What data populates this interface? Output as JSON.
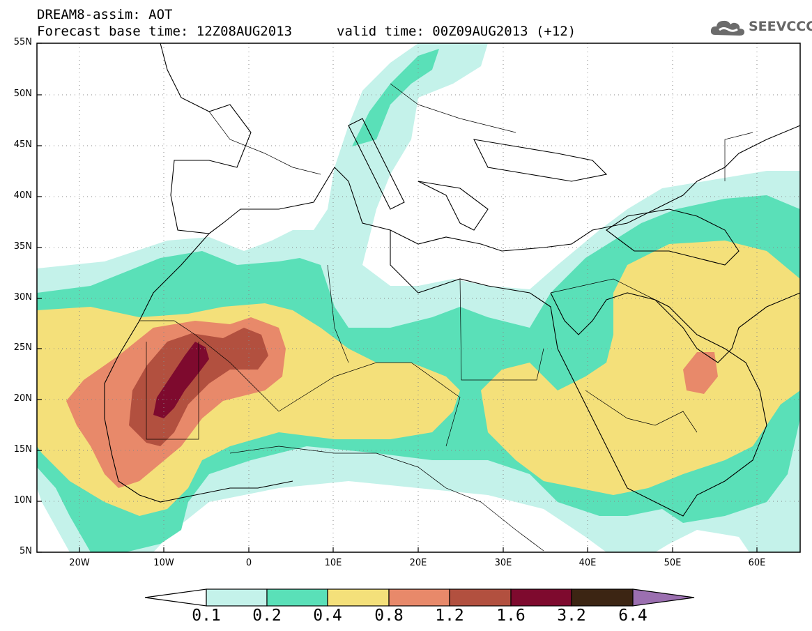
{
  "header": {
    "title": "DREAM8-assim: AOT",
    "base_time": "Forecast base time: 12Z08AUG2013",
    "valid_time": "valid time: 00Z09AUG2013 (+12)"
  },
  "logo": {
    "text": "SEEVCCC",
    "icon": "cloud-icon"
  },
  "map": {
    "lat_labels": [
      "55N",
      "50N",
      "45N",
      "40N",
      "35N",
      "30N",
      "25N",
      "20N",
      "15N",
      "10N",
      "5N"
    ],
    "lon_labels": [
      "20W",
      "10W",
      "0",
      "10E",
      "20E",
      "30E",
      "40E",
      "50E",
      "60E"
    ],
    "lon_range": [
      -25,
      65
    ],
    "lat_range": [
      5,
      55
    ],
    "grid": true
  },
  "colorbar": {
    "levels": [
      "0.1",
      "0.2",
      "0.4",
      "0.8",
      "1.2",
      "1.6",
      "3.2",
      "6.4"
    ],
    "colors": [
      "#c4f2ea",
      "#5ae0b8",
      "#f4e07a",
      "#e8896a",
      "#b2503f",
      "#7e0a2e",
      "#3c2513",
      "#9b6fb0"
    ],
    "under_color": "#ffffff"
  }
}
